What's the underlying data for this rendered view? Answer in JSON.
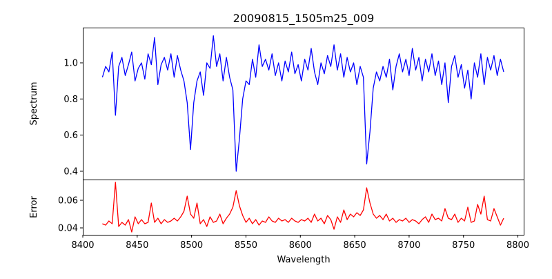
{
  "chart_data": {
    "type": "line",
    "title": "20090815_1505m25_009",
    "xlabel": "Wavelength",
    "x_start": 8418,
    "x_step": 3,
    "xlim": [
      8400,
      8806
    ],
    "xticks": [
      8400,
      8450,
      8500,
      8550,
      8600,
      8650,
      8700,
      8750,
      8800
    ],
    "panels": [
      {
        "name": "spectrum",
        "ylabel": "Spectrum",
        "ylim": [
          0.354,
          1.195
        ],
        "yticks": [
          "0.4",
          "0.6",
          "0.8",
          "1.0"
        ],
        "color": "#0000ff",
        "values": [
          0.92,
          0.98,
          0.95,
          1.06,
          0.71,
          0.98,
          1.03,
          0.93,
          0.99,
          1.06,
          0.9,
          0.97,
          1.0,
          0.91,
          1.05,
          0.99,
          1.14,
          0.88,
          0.99,
          1.03,
          0.96,
          1.05,
          0.92,
          1.04,
          0.96,
          0.9,
          0.78,
          0.52,
          0.78,
          0.9,
          0.95,
          0.82,
          1.0,
          0.97,
          1.15,
          0.98,
          1.05,
          0.9,
          1.03,
          0.92,
          0.85,
          0.4,
          0.58,
          0.8,
          0.9,
          0.88,
          1.02,
          0.92,
          1.1,
          0.98,
          1.02,
          0.96,
          1.05,
          0.93,
          1.0,
          0.9,
          1.01,
          0.95,
          1.06,
          0.94,
          0.99,
          0.9,
          1.02,
          0.96,
          1.08,
          0.95,
          0.88,
          1.0,
          0.94,
          1.04,
          0.98,
          1.1,
          0.96,
          1.05,
          0.92,
          1.03,
          0.95,
          1.0,
          0.88,
          0.98,
          0.92,
          0.44,
          0.62,
          0.86,
          0.95,
          0.9,
          0.98,
          0.92,
          1.02,
          0.85,
          0.98,
          1.05,
          0.95,
          1.02,
          0.93,
          1.08,
          0.96,
          1.03,
          0.9,
          1.02,
          0.95,
          1.05,
          0.93,
          1.01,
          0.88,
          1.0,
          0.78,
          0.98,
          1.04,
          0.92,
          0.99,
          0.86,
          0.96,
          0.8,
          1.0,
          0.92,
          1.05,
          0.88,
          1.03,
          0.96,
          1.04,
          0.93,
          1.02,
          0.95
        ]
      },
      {
        "name": "error",
        "ylabel": "Error",
        "ylim": [
          0.035,
          0.075
        ],
        "yticks": [
          "0.04",
          "0.06"
        ],
        "color": "#ff0000",
        "values": [
          0.043,
          0.042,
          0.045,
          0.043,
          0.073,
          0.041,
          0.044,
          0.042,
          0.046,
          0.037,
          0.048,
          0.043,
          0.046,
          0.043,
          0.044,
          0.058,
          0.044,
          0.047,
          0.043,
          0.046,
          0.044,
          0.045,
          0.047,
          0.045,
          0.048,
          0.052,
          0.063,
          0.05,
          0.047,
          0.058,
          0.043,
          0.046,
          0.041,
          0.048,
          0.044,
          0.045,
          0.05,
          0.043,
          0.047,
          0.05,
          0.055,
          0.067,
          0.056,
          0.049,
          0.044,
          0.047,
          0.043,
          0.046,
          0.042,
          0.045,
          0.044,
          0.048,
          0.045,
          0.044,
          0.047,
          0.045,
          0.046,
          0.044,
          0.047,
          0.045,
          0.044,
          0.046,
          0.045,
          0.047,
          0.044,
          0.05,
          0.045,
          0.047,
          0.043,
          0.049,
          0.046,
          0.039,
          0.048,
          0.044,
          0.053,
          0.046,
          0.05,
          0.048,
          0.051,
          0.049,
          0.053,
          0.069,
          0.058,
          0.05,
          0.047,
          0.049,
          0.046,
          0.05,
          0.045,
          0.047,
          0.044,
          0.046,
          0.045,
          0.047,
          0.044,
          0.046,
          0.045,
          0.043,
          0.046,
          0.048,
          0.044,
          0.05,
          0.046,
          0.047,
          0.045,
          0.054,
          0.047,
          0.046,
          0.05,
          0.044,
          0.047,
          0.045,
          0.055,
          0.044,
          0.045,
          0.057,
          0.05,
          0.063,
          0.046,
          0.045,
          0.054,
          0.048,
          0.042,
          0.047
        ]
      }
    ]
  }
}
